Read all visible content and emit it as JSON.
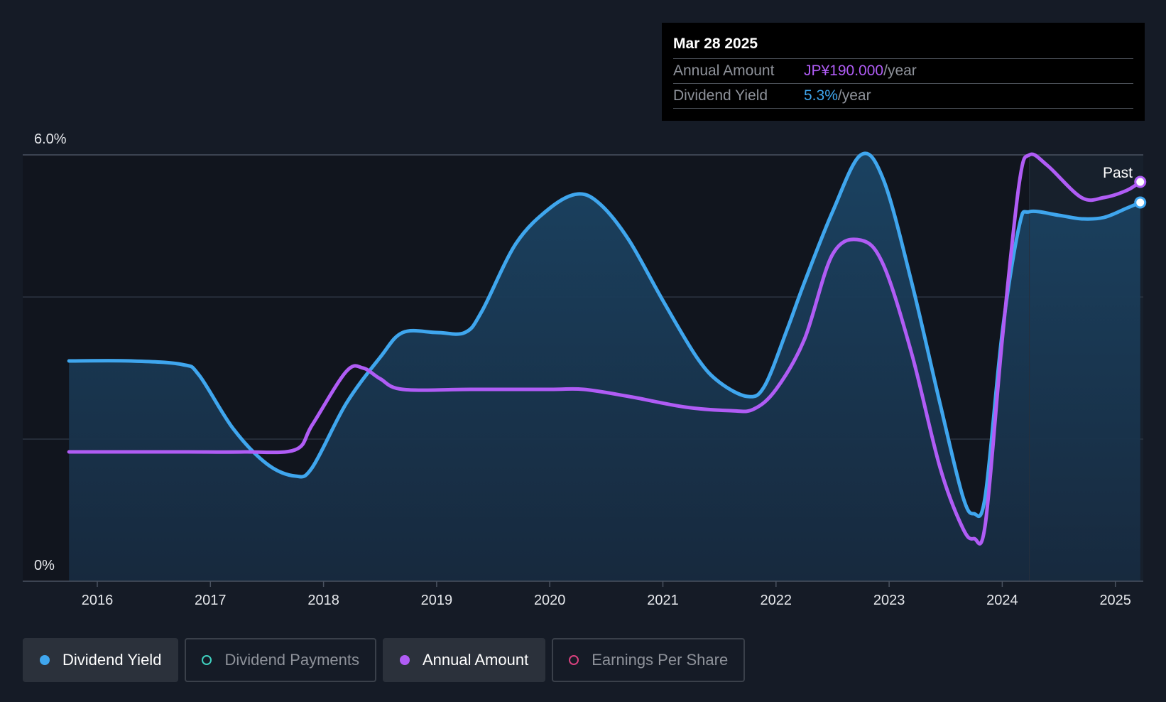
{
  "chart_data": {
    "type": "line",
    "y_axis": {
      "min": 0,
      "max": 6.0,
      "tick_labels": [
        "6.0%",
        "0%"
      ],
      "gridlines": [
        0,
        2,
        4,
        6
      ]
    },
    "x_axis": {
      "min": 2015.6,
      "max": 2025.24,
      "tick_labels": [
        "2016",
        "2017",
        "2018",
        "2019",
        "2020",
        "2021",
        "2022",
        "2023",
        "2024",
        "2025"
      ]
    },
    "past_label": "Past",
    "past_region_start": 2024.24,
    "series": [
      {
        "name": "Dividend Yield",
        "color": "#3fa6ee",
        "area": true,
        "x": [
          2015.75,
          2016.3,
          2016.75,
          2016.9,
          2017.2,
          2017.5,
          2017.75,
          2017.9,
          2018.2,
          2018.5,
          2018.7,
          2019.0,
          2019.25,
          2019.4,
          2019.7,
          2020.0,
          2020.25,
          2020.45,
          2020.7,
          2021.0,
          2021.3,
          2021.5,
          2021.75,
          2021.9,
          2022.1,
          2022.25,
          2022.5,
          2022.75,
          2022.95,
          2023.2,
          2023.45,
          2023.65,
          2023.75,
          2023.85,
          2024.0,
          2024.15,
          2024.24,
          2024.5,
          2024.7,
          2024.9,
          2025.1,
          2025.22
        ],
        "values": [
          3.1,
          3.1,
          3.05,
          2.9,
          2.15,
          1.65,
          1.48,
          1.6,
          2.5,
          3.15,
          3.5,
          3.5,
          3.5,
          3.8,
          4.75,
          5.25,
          5.45,
          5.3,
          4.8,
          3.95,
          3.15,
          2.8,
          2.6,
          2.75,
          3.55,
          4.2,
          5.2,
          6.0,
          5.65,
          4.2,
          2.5,
          1.2,
          0.95,
          1.2,
          3.5,
          5.0,
          5.2,
          5.15,
          5.1,
          5.12,
          5.25,
          5.33
        ]
      },
      {
        "name": "Annual Amount",
        "color": "#b05cf5",
        "area": false,
        "x": [
          2015.75,
          2016.3,
          2016.8,
          2017.3,
          2017.75,
          2017.9,
          2018.2,
          2018.35,
          2018.5,
          2018.7,
          2019.3,
          2020.0,
          2020.3,
          2020.7,
          2021.2,
          2021.6,
          2021.8,
          2022.0,
          2022.25,
          2022.5,
          2022.75,
          2022.95,
          2023.2,
          2023.45,
          2023.65,
          2023.75,
          2023.85,
          2024.0,
          2024.15,
          2024.24,
          2024.4,
          2024.7,
          2024.9,
          2025.1,
          2025.22
        ],
        "values": [
          1.82,
          1.82,
          1.82,
          1.82,
          1.85,
          2.2,
          2.95,
          3.0,
          2.85,
          2.7,
          2.7,
          2.7,
          2.7,
          2.6,
          2.45,
          2.4,
          2.42,
          2.7,
          3.4,
          4.6,
          4.8,
          4.45,
          3.2,
          1.6,
          0.75,
          0.6,
          0.8,
          3.4,
          5.6,
          6.0,
          5.85,
          5.4,
          5.4,
          5.5,
          5.62
        ]
      }
    ]
  },
  "tooltip": {
    "date": "Mar 28 2025",
    "rows": [
      {
        "label": "Annual Amount",
        "value": "JP¥190.000",
        "unit": "/year"
      },
      {
        "label": "Dividend Yield",
        "value": "5.3%",
        "unit": "/year"
      }
    ]
  },
  "legend": [
    {
      "label": "Dividend Yield",
      "color": "#3fa6ee",
      "state": "active"
    },
    {
      "label": "Dividend Payments",
      "color": "#3fd1c0",
      "state": "inactive"
    },
    {
      "label": "Annual Amount",
      "color": "#b05cf5",
      "state": "active"
    },
    {
      "label": "Earnings Per Share",
      "color": "#d8417e",
      "state": "inactive"
    }
  ]
}
